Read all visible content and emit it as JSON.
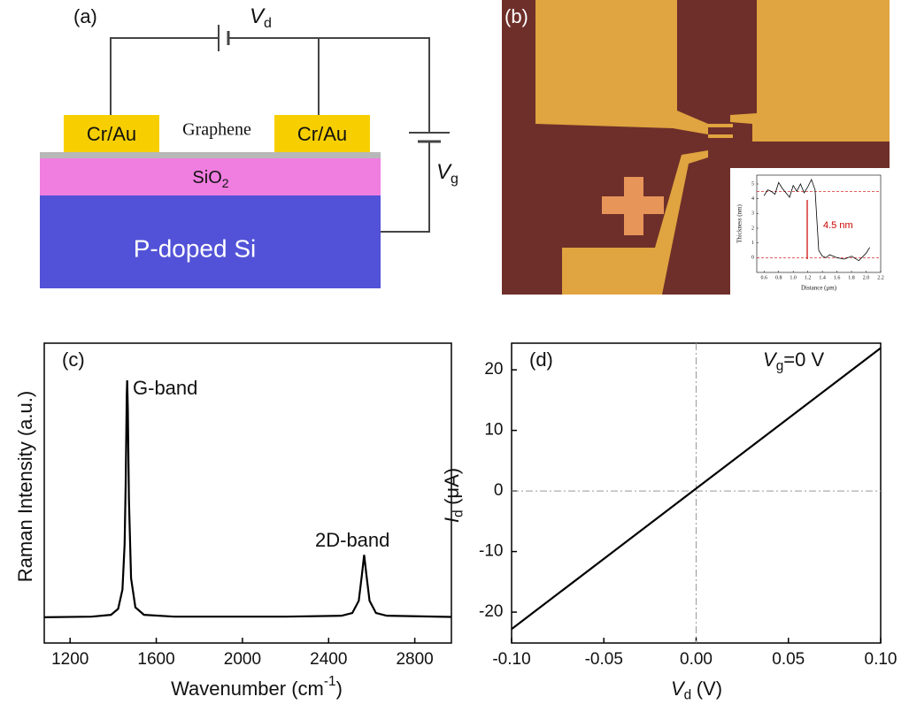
{
  "panel_a": {
    "label": "(a)",
    "vd_symbol": "V",
    "vd_sub": "d",
    "vg_symbol": "V",
    "vg_sub": "g",
    "electrode_left": "Cr/Au",
    "electrode_right": "Cr/Au",
    "graphene": "Graphene",
    "oxide": "SiO",
    "oxide_sub": "2",
    "substrate": "P-doped Si"
  },
  "panel_b": {
    "label": "(b)"
  },
  "chart_data": [
    {
      "type": "line",
      "panel": "(c)",
      "color": "#000000",
      "xlabel": {
        "text": "Wavenumber (cm",
        "sup": "-1",
        "end": ")"
      },
      "ylabel": "Raman Intensity (a.u.)",
      "x": [
        1080,
        1300,
        1390,
        1423,
        1443,
        1453,
        1458,
        1463,
        1465,
        1468,
        1473,
        1483,
        1503,
        1543,
        1683,
        2200,
        2460,
        2510,
        2540,
        2555,
        2565,
        2575,
        2590,
        2620,
        2670,
        2970
      ],
      "values": [
        0.086,
        0.088,
        0.094,
        0.114,
        0.178,
        0.329,
        0.533,
        0.83,
        0.876,
        0.779,
        0.481,
        0.216,
        0.119,
        0.094,
        0.088,
        0.088,
        0.091,
        0.1,
        0.141,
        0.23,
        0.294,
        0.23,
        0.141,
        0.1,
        0.091,
        0.087
      ],
      "xlim": [
        1080,
        2970
      ],
      "ylim": [
        0,
        1
      ],
      "xticks": [
        1200,
        1600,
        2000,
        2400,
        2800
      ],
      "annotations": [
        "G-band",
        "2D-band"
      ]
    },
    {
      "type": "line",
      "panel": "(d)",
      "color": "#000000",
      "xlabel": {
        "symbol": "V",
        "sub": "d",
        "unit": "(V)"
      },
      "ylabel": {
        "symbol": "I",
        "sub": "d",
        "unit": "(μA)"
      },
      "annotation": {
        "symbol": "V",
        "sub": "g",
        "rest": "=0 V"
      },
      "x": [
        -0.1,
        0.1
      ],
      "values": [
        -22.8,
        23.6
      ],
      "xlim": [
        -0.1,
        0.1
      ],
      "ylim": [
        -25.1,
        24.4
      ],
      "xticks": [
        {
          "value": -0.1,
          "label": "-0.10"
        },
        {
          "value": -0.05,
          "label": "-0.05"
        },
        {
          "value": 0,
          "label": "0.00"
        },
        {
          "value": 0.05,
          "label": "0.05"
        },
        {
          "value": 0.1,
          "label": "0.10"
        }
      ],
      "yticks": [
        -20,
        -10,
        0,
        10,
        20
      ],
      "hlines": [
        0
      ],
      "vlines": [
        0
      ]
    },
    {
      "type": "line",
      "color": "#000000",
      "xlabel": "Distance (μm)",
      "ylabel": "Thickness (nm)",
      "annotation": "4.5 nm",
      "x": [
        0.6,
        0.65,
        0.7,
        0.75,
        0.8,
        0.85,
        0.9,
        0.95,
        1.0,
        1.05,
        1.1,
        1.15,
        1.2,
        1.25,
        1.3,
        1.35,
        1.4,
        1.45,
        1.5,
        1.6,
        1.7,
        1.8,
        1.9,
        2.0,
        2.05
      ],
      "values": [
        4.2,
        4.6,
        4.5,
        4.3,
        5.1,
        4.7,
        4.4,
        4.1,
        4.9,
        4.5,
        5.0,
        4.4,
        4.8,
        5.3,
        4.6,
        0.5,
        0.1,
        0.0,
        0.2,
        0.0,
        -0.1,
        0.1,
        -0.2,
        0.3,
        0.7
      ],
      "xlim": [
        0.5,
        2.2
      ],
      "ylim": [
        -1,
        5.6
      ],
      "xticks": [
        0.6,
        0.8,
        {
          "value": 1,
          "label": "1.0"
        },
        1.2,
        1.4,
        1.6,
        1.8,
        {
          "value": 2,
          "label": "2.0"
        },
        2.2
      ],
      "yticks": [
        0,
        1,
        2,
        3,
        4,
        5
      ],
      "hlines": [
        4.5,
        0
      ],
      "hline_color": "#cc0000"
    }
  ]
}
